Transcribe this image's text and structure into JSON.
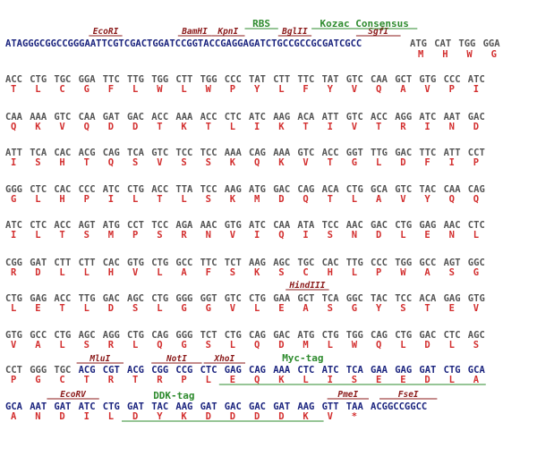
{
  "header": {
    "seq_blue": "ATAGGGCGGCCGGGAATTCGTCGACTGGATCCGGTACCGAGGAGATCTGCCGCCGCGATCGCC",
    "codons": [
      "ATG",
      "CAT",
      "TGG",
      "GGA"
    ],
    "aas": [
      "M",
      "H",
      "W",
      "G"
    ]
  },
  "rows": [
    {
      "codons": [
        "ACC",
        "CTG",
        "TGC",
        "GGA",
        "TTC",
        "TTG",
        "TGG",
        "CTT",
        "TGG",
        "CCC",
        "TAT",
        "CTT",
        "TTC",
        "TAT",
        "GTC",
        "CAA",
        "GCT",
        "GTG",
        "CCC",
        "ATC"
      ],
      "aas": [
        "T",
        "L",
        "C",
        "G",
        "F",
        "L",
        "W",
        "L",
        "W",
        "P",
        "Y",
        "L",
        "F",
        "Y",
        "V",
        "Q",
        "A",
        "V",
        "P",
        "I"
      ]
    },
    {
      "codons": [
        "CAA",
        "AAA",
        "GTC",
        "CAA",
        "GAT",
        "GAC",
        "ACC",
        "AAA",
        "ACC",
        "CTC",
        "ATC",
        "AAG",
        "ACA",
        "ATT",
        "GTC",
        "ACC",
        "AGG",
        "ATC",
        "AAT",
        "GAC"
      ],
      "aas": [
        "Q",
        "K",
        "V",
        "Q",
        "D",
        "D",
        "T",
        "K",
        "T",
        "L",
        "I",
        "K",
        "T",
        "I",
        "V",
        "T",
        "R",
        "I",
        "N",
        "D"
      ]
    },
    {
      "codons": [
        "ATT",
        "TCA",
        "CAC",
        "ACG",
        "CAG",
        "TCA",
        "GTC",
        "TCC",
        "TCC",
        "AAA",
        "CAG",
        "AAA",
        "GTC",
        "ACC",
        "GGT",
        "TTG",
        "GAC",
        "TTC",
        "ATT",
        "CCT"
      ],
      "aas": [
        "I",
        "S",
        "H",
        "T",
        "Q",
        "S",
        "V",
        "S",
        "S",
        "K",
        "Q",
        "K",
        "V",
        "T",
        "G",
        "L",
        "D",
        "F",
        "I",
        "P"
      ]
    },
    {
      "codons": [
        "GGG",
        "CTC",
        "CAC",
        "CCC",
        "ATC",
        "CTG",
        "ACC",
        "TTA",
        "TCC",
        "AAG",
        "ATG",
        "GAC",
        "CAG",
        "ACA",
        "CTG",
        "GCA",
        "GTC",
        "TAC",
        "CAA",
        "CAG"
      ],
      "aas": [
        "G",
        "L",
        "H",
        "P",
        "I",
        "L",
        "T",
        "L",
        "S",
        "K",
        "M",
        "D",
        "Q",
        "T",
        "L",
        "A",
        "V",
        "Y",
        "Q",
        "Q"
      ]
    },
    {
      "codons": [
        "ATC",
        "CTC",
        "ACC",
        "AGT",
        "ATG",
        "CCT",
        "TCC",
        "AGA",
        "AAC",
        "GTG",
        "ATC",
        "CAA",
        "ATA",
        "TCC",
        "AAC",
        "GAC",
        "CTG",
        "GAG",
        "AAC",
        "CTC"
      ],
      "aas": [
        "I",
        "L",
        "T",
        "S",
        "M",
        "P",
        "S",
        "R",
        "N",
        "V",
        "I",
        "Q",
        "I",
        "S",
        "N",
        "D",
        "L",
        "E",
        "N",
        "L"
      ]
    },
    {
      "codons": [
        "CGG",
        "GAT",
        "CTT",
        "CTT",
        "CAC",
        "GTG",
        "CTG",
        "GCC",
        "TTC",
        "TCT",
        "AAG",
        "AGC",
        "TGC",
        "CAC",
        "TTG",
        "CCC",
        "TGG",
        "GCC",
        "AGT",
        "GGC"
      ],
      "aas": [
        "R",
        "D",
        "L",
        "L",
        "H",
        "V",
        "L",
        "A",
        "F",
        "S",
        "K",
        "S",
        "C",
        "H",
        "L",
        "P",
        "W",
        "A",
        "S",
        "G"
      ]
    },
    {
      "codons": [
        "CTG",
        "GAG",
        "ACC",
        "TTG",
        "GAC",
        "AGC",
        "CTG",
        "GGG",
        "GGT",
        "GTC",
        "CTG",
        "GAA",
        "GCT",
        "TCA",
        "GGC",
        "TAC",
        "TCC",
        "ACA",
        "GAG",
        "GTG"
      ],
      "aas": [
        "L",
        "E",
        "T",
        "L",
        "D",
        "S",
        "L",
        "G",
        "G",
        "V",
        "L",
        "E",
        "A",
        "S",
        "G",
        "Y",
        "S",
        "T",
        "E",
        "V"
      ]
    },
    {
      "codons": [
        "GTG",
        "GCC",
        "CTG",
        "AGC",
        "AGG",
        "CTG",
        "CAG",
        "GGG",
        "TCT",
        "CTG",
        "CAG",
        "GAC",
        "ATG",
        "CTG",
        "TGG",
        "CAG",
        "CTG",
        "GAC",
        "CTC",
        "AGC"
      ],
      "aas": [
        "V",
        "A",
        "L",
        "S",
        "R",
        "L",
        "Q",
        "G",
        "S",
        "L",
        "Q",
        "D",
        "M",
        "L",
        "W",
        "Q",
        "L",
        "D",
        "L",
        "S"
      ]
    },
    {
      "codons": [
        "CCT",
        "GGG",
        "TGC",
        "ACG",
        "CGT",
        "ACG",
        "CGG",
        "CCG",
        "CTC",
        "GAG",
        "CAG",
        "AAA",
        "CTC",
        "ATC",
        "TCA",
        "GAA",
        "GAG",
        "GAT",
        "CTG",
        "GCA"
      ],
      "aas": [
        "P",
        "G",
        "C",
        "T",
        "R",
        "T",
        "R",
        "P",
        "L",
        "E",
        "Q",
        "K",
        "L",
        "I",
        "S",
        "E",
        "E",
        "D",
        "L",
        "A"
      ]
    },
    {
      "codons": [
        "GCA",
        "AAT",
        "GAT",
        "ATC",
        "CTG",
        "GAT",
        "TAC",
        "AAG",
        "GAT",
        "GAC",
        "GAC",
        "GAT",
        "AAG",
        "GTT",
        "TAA"
      ],
      "aas": [
        "A",
        "N",
        "D",
        "I",
        "L",
        "D",
        "Y",
        "K",
        "D",
        "D",
        "D",
        "D",
        "K",
        "V",
        "*"
      ],
      "tail": "ACGGCCGGCC"
    }
  ],
  "enzymes": [
    "EcoRI",
    "BamHI",
    "KpnI",
    "BglII",
    "SgfI",
    "HindIII",
    "MluI",
    "NotI",
    "XhoI",
    "EcoRV",
    "PmeI",
    "FseI"
  ],
  "features": [
    "RBS",
    "Kozac Consensus",
    "Myc-tag",
    "DDK-tag"
  ]
}
